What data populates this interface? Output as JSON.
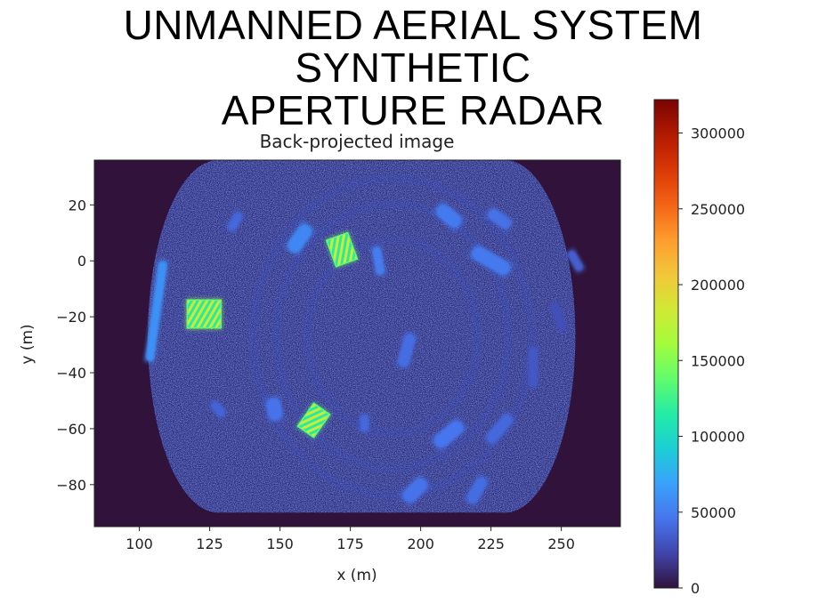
{
  "page": {
    "title_line1": "UNMANNED AERIAL SYSTEM SYNTHETIC",
    "title_line2": "APERTURE RADAR"
  },
  "chart_data": {
    "type": "heatmap",
    "title": "Back-projected image",
    "xlabel": "x (m)",
    "ylabel": "y (m)",
    "xlim": [
      84,
      271
    ],
    "ylim": [
      -95,
      36
    ],
    "xticks": [
      100,
      125,
      150,
      175,
      200,
      225,
      250
    ],
    "yticks": [
      20,
      0,
      -20,
      -40,
      -60,
      -80
    ],
    "xtick_labels": [
      "100",
      "125",
      "150",
      "175",
      "200",
      "225",
      "250"
    ],
    "ytick_labels": [
      "20",
      "0",
      "−20",
      "−40",
      "−60",
      "−80"
    ],
    "colormap": "turbo",
    "background_color": "#30123b",
    "colorbar": {
      "range": [
        0,
        322000
      ],
      "ticks": [
        0,
        50000,
        100000,
        150000,
        200000,
        250000,
        300000
      ],
      "tick_labels": [
        "0",
        "50000",
        "100000",
        "150000",
        "200000",
        "250000",
        "300000"
      ],
      "colors": [
        "#30123b",
        "#4145ab",
        "#4675ed",
        "#39a2fc",
        "#1bcfd4",
        "#24eca6",
        "#61fc6c",
        "#a4fc3b",
        "#d1e834",
        "#f3c63a",
        "#fe9b2d",
        "#f36315",
        "#d93806",
        "#b11901",
        "#7a0403"
      ]
    },
    "swath": {
      "x_left_center": 128,
      "x_right_center": 230,
      "y_center": -27,
      "x_radius": 25,
      "y_radius": 63
    },
    "features": [
      {
        "name": "left-arc",
        "x": 106,
        "y": -18,
        "w": 3,
        "h": 36,
        "angle": -8,
        "value": 60000
      },
      {
        "name": "target-left",
        "x": 123,
        "y": -19,
        "w": 12,
        "h": 10,
        "angle": 0,
        "value": 160000
      },
      {
        "name": "target-top",
        "x": 172,
        "y": 4,
        "w": 8,
        "h": 10,
        "angle": 20,
        "value": 140000
      },
      {
        "name": "target-bottom",
        "x": 162,
        "y": -57,
        "w": 7,
        "h": 10,
        "angle": -35,
        "value": 130000
      },
      {
        "name": "blob-1",
        "x": 157,
        "y": 8,
        "w": 5,
        "h": 11,
        "angle": -35,
        "value": 55000
      },
      {
        "name": "blob-2",
        "x": 185,
        "y": 0,
        "w": 3,
        "h": 10,
        "angle": 10,
        "value": 50000
      },
      {
        "name": "blob-3",
        "x": 210,
        "y": 16,
        "w": 5,
        "h": 10,
        "angle": 50,
        "value": 48000
      },
      {
        "name": "blob-4",
        "x": 228,
        "y": 15,
        "w": 4,
        "h": 9,
        "angle": 55,
        "value": 44000
      },
      {
        "name": "blob-5",
        "x": 225,
        "y": 0,
        "w": 5,
        "h": 15,
        "angle": 60,
        "value": 48000
      },
      {
        "name": "blob-6",
        "x": 255,
        "y": 0,
        "w": 3,
        "h": 8,
        "angle": 30,
        "value": 35000
      },
      {
        "name": "blob-7",
        "x": 134,
        "y": 14,
        "w": 3,
        "h": 7,
        "angle": -30,
        "value": 40000
      },
      {
        "name": "blob-8",
        "x": 195,
        "y": -32,
        "w": 4,
        "h": 12,
        "angle": -15,
        "value": 42000
      },
      {
        "name": "blob-9",
        "x": 240,
        "y": -38,
        "w": 3,
        "h": 14,
        "angle": 0,
        "value": 32000
      },
      {
        "name": "blob-10",
        "x": 148,
        "y": -53,
        "w": 5,
        "h": 8,
        "angle": 10,
        "value": 45000
      },
      {
        "name": "blob-11",
        "x": 180,
        "y": -58,
        "w": 3,
        "h": 6,
        "angle": 0,
        "value": 40000
      },
      {
        "name": "blob-12",
        "x": 210,
        "y": -62,
        "w": 5,
        "h": 12,
        "angle": -50,
        "value": 46000
      },
      {
        "name": "blob-13",
        "x": 228,
        "y": -60,
        "w": 4,
        "h": 12,
        "angle": -40,
        "value": 40000
      },
      {
        "name": "blob-14",
        "x": 198,
        "y": -82,
        "w": 5,
        "h": 10,
        "angle": -45,
        "value": 45000
      },
      {
        "name": "blob-15",
        "x": 220,
        "y": -82,
        "w": 4,
        "h": 10,
        "angle": -30,
        "value": 42000
      },
      {
        "name": "blob-16",
        "x": 128,
        "y": -53,
        "w": 3,
        "h": 6,
        "angle": 40,
        "value": 38000
      },
      {
        "name": "blob-17",
        "x": 249,
        "y": -20,
        "w": 3,
        "h": 10,
        "angle": 20,
        "value": 28000
      }
    ]
  }
}
